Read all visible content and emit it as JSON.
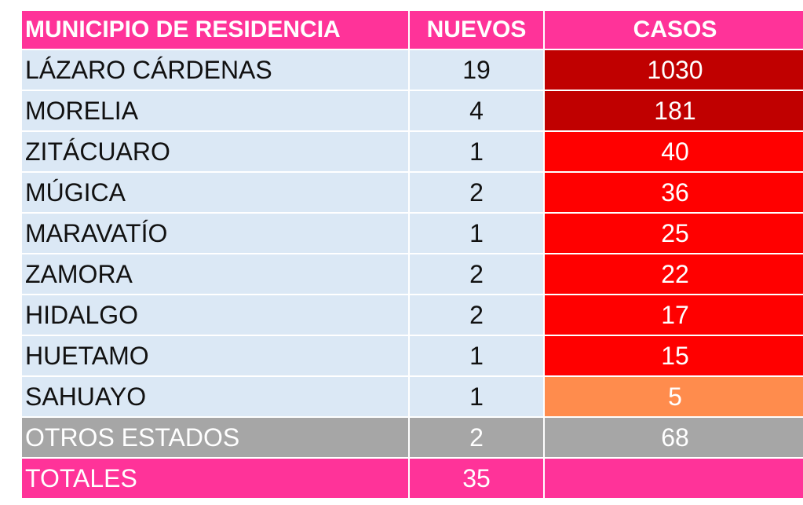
{
  "table": {
    "headers": [
      "MUNICIPIO DE RESIDENCIA",
      "NUEVOS",
      "CASOS"
    ],
    "rows": [
      {
        "municipio": "LÁZARO CÁRDENAS",
        "nuevos": "19",
        "casos": "1030",
        "color": "#c00000"
      },
      {
        "municipio": "MORELIA",
        "nuevos": "4",
        "casos": "181",
        "color": "#c00000"
      },
      {
        "municipio": "ZITÁCUARO",
        "nuevos": "1",
        "casos": "40",
        "color": "#ff0000"
      },
      {
        "municipio": "MÚGICA",
        "nuevos": "2",
        "casos": "36",
        "color": "#ff0000"
      },
      {
        "municipio": "MARAVATÍO",
        "nuevos": "1",
        "casos": "25",
        "color": "#ff0000"
      },
      {
        "municipio": "ZAMORA",
        "nuevos": "2",
        "casos": "22",
        "color": "#ff0000"
      },
      {
        "municipio": "HIDALGO",
        "nuevos": "2",
        "casos": "17",
        "color": "#ff0000"
      },
      {
        "municipio": "HUETAMO",
        "nuevos": "1",
        "casos": "15",
        "color": "#ff0000"
      },
      {
        "municipio": "SAHUAYO",
        "nuevos": "1",
        "casos": "5",
        "color": "#ff8c4d"
      }
    ],
    "other": {
      "municipio": "OTROS ESTADOS",
      "nuevos": "2",
      "casos": "68"
    },
    "total": {
      "municipio": "TOTALES",
      "nuevos": "35",
      "casos": ""
    }
  }
}
